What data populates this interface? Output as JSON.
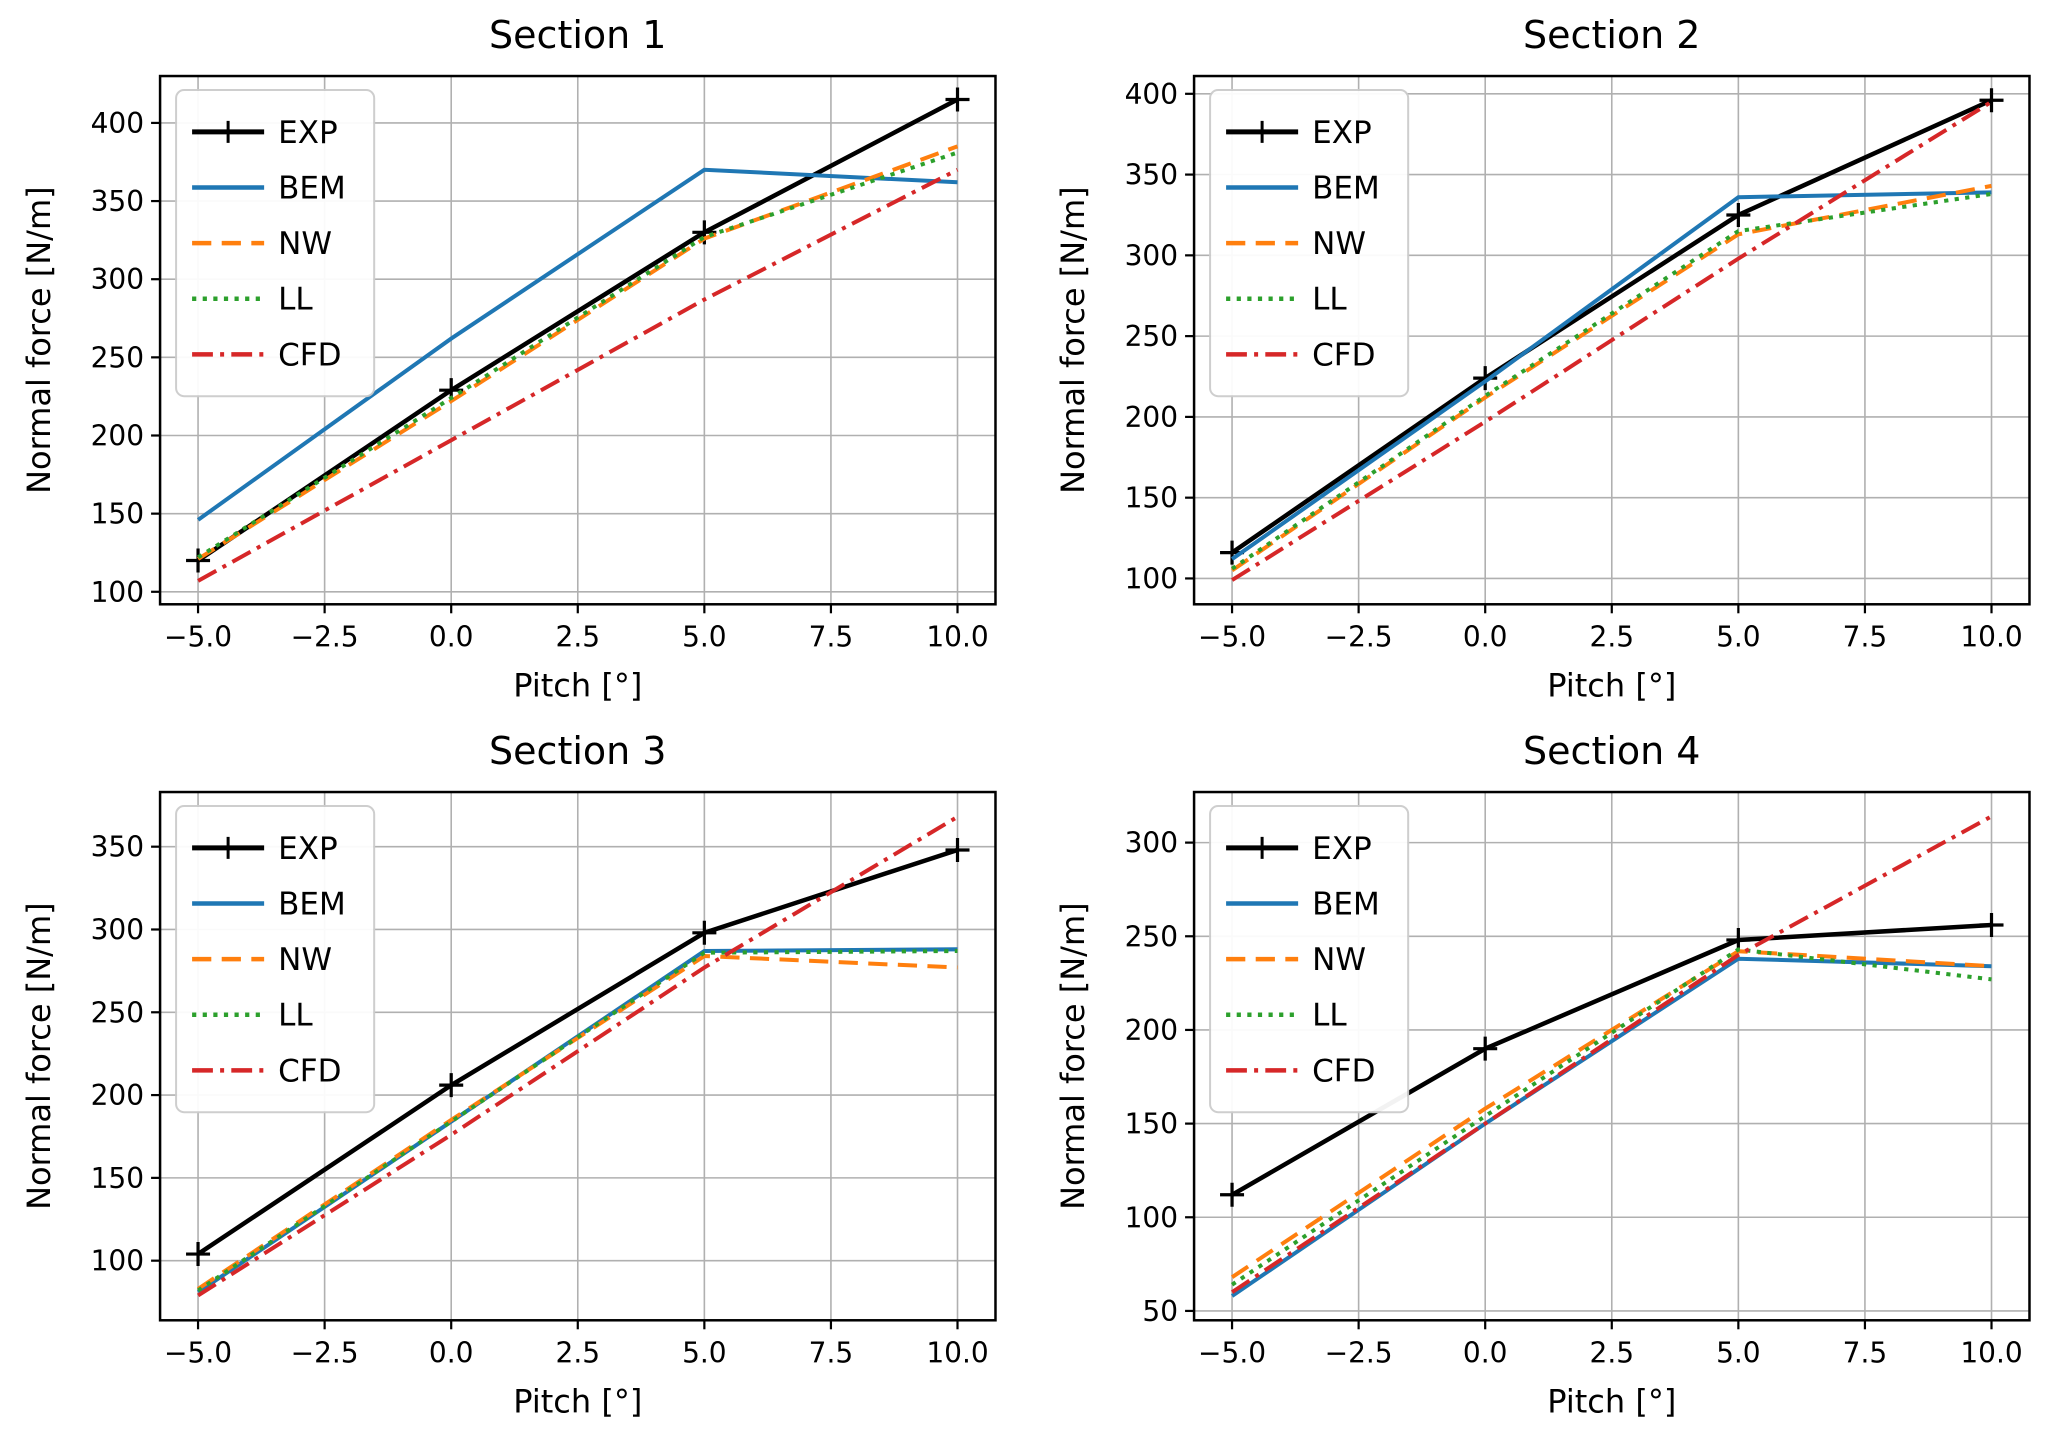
{
  "figure": {
    "background": "#ffffff",
    "layout": "2x2-grid"
  },
  "colors": {
    "background": "#ffffff",
    "grid": "#b0b0b0",
    "spine": "#000000",
    "legend_border": "#cccccc",
    "legend_background": "#ffffff"
  },
  "axes_common": {
    "xlabel": "Pitch [°]",
    "ylabel": "Normal force [N/m]",
    "xlim": [
      -5.75,
      10.75
    ],
    "xticks": [
      -5,
      -2.5,
      0,
      2.5,
      5,
      7.5,
      10
    ],
    "xtick_labels": [
      "−5.0",
      "−2.5",
      "0.0",
      "2.5",
      "5.0",
      "7.5",
      "10.0"
    ],
    "grid": true,
    "legend_position": "upper-left"
  },
  "series_styles": [
    {
      "name": "EXP",
      "color": "#000000",
      "linestyle": "solid",
      "marker": "plus",
      "linewidth": 4.5
    },
    {
      "name": "BEM",
      "color": "#1f77b4",
      "linestyle": "solid",
      "marker": null,
      "linewidth": 4
    },
    {
      "name": "NW",
      "color": "#ff7f0e",
      "linestyle": "dashed",
      "marker": null,
      "linewidth": 4
    },
    {
      "name": "LL",
      "color": "#2ca02c",
      "linestyle": "dotted",
      "marker": null,
      "linewidth": 4
    },
    {
      "name": "CFD",
      "color": "#d62728",
      "linestyle": "dashdot",
      "marker": null,
      "linewidth": 4
    }
  ],
  "legend_labels": [
    "EXP",
    "BEM",
    "NW",
    "LL",
    "CFD"
  ],
  "chart_data": [
    {
      "id": "section-1",
      "type": "line",
      "title": "Section 1",
      "xlabel": "Pitch [°]",
      "ylabel": "Normal force [N/m]",
      "x": [
        -5,
        0,
        5,
        10
      ],
      "ylim": [
        92,
        430
      ],
      "yticks": [
        100,
        150,
        200,
        250,
        300,
        350,
        400
      ],
      "series": [
        {
          "name": "EXP",
          "values": [
            120,
            229,
            330,
            415
          ]
        },
        {
          "name": "BEM",
          "values": [
            146,
            262,
            370,
            362
          ]
        },
        {
          "name": "NW",
          "values": [
            121,
            222,
            326,
            385
          ]
        },
        {
          "name": "LL",
          "values": [
            122,
            224,
            327,
            381
          ]
        },
        {
          "name": "CFD",
          "values": [
            107,
            197,
            287,
            370
          ]
        }
      ]
    },
    {
      "id": "section-2",
      "type": "line",
      "title": "Section 2",
      "xlabel": "Pitch [°]",
      "ylabel": "Normal force [N/m]",
      "x": [
        -5,
        0,
        5,
        10
      ],
      "ylim": [
        84,
        411
      ],
      "yticks": [
        100,
        150,
        200,
        250,
        300,
        350,
        400
      ],
      "series": [
        {
          "name": "EXP",
          "values": [
            116,
            224,
            325,
            396
          ]
        },
        {
          "name": "BEM",
          "values": [
            112,
            222,
            336,
            339
          ]
        },
        {
          "name": "NW",
          "values": [
            105,
            212,
            313,
            343
          ]
        },
        {
          "name": "LL",
          "values": [
            106,
            213,
            315,
            338
          ]
        },
        {
          "name": "CFD",
          "values": [
            99,
            197,
            298,
            395
          ]
        }
      ]
    },
    {
      "id": "section-3",
      "type": "line",
      "title": "Section 3",
      "xlabel": "Pitch [°]",
      "ylabel": "Normal force [N/m]",
      "x": [
        -5,
        0,
        5,
        10
      ],
      "ylim": [
        64,
        383
      ],
      "yticks": [
        100,
        150,
        200,
        250,
        300,
        350
      ],
      "series": [
        {
          "name": "EXP",
          "values": [
            104,
            206,
            298,
            348
          ]
        },
        {
          "name": "BEM",
          "values": [
            81,
            184,
            287,
            288
          ]
        },
        {
          "name": "NW",
          "values": [
            83,
            185,
            284,
            277
          ]
        },
        {
          "name": "LL",
          "values": [
            82,
            184,
            286,
            287
          ]
        },
        {
          "name": "CFD",
          "values": [
            79,
            176,
            277,
            368
          ]
        }
      ]
    },
    {
      "id": "section-4",
      "type": "line",
      "title": "Section 4",
      "xlabel": "Pitch [°]",
      "ylabel": "Normal force [N/m]",
      "x": [
        -5,
        0,
        5,
        10
      ],
      "ylim": [
        45,
        327
      ],
      "yticks": [
        50,
        100,
        150,
        200,
        250,
        300
      ],
      "series": [
        {
          "name": "EXP",
          "values": [
            112,
            190,
            248,
            256
          ]
        },
        {
          "name": "BEM",
          "values": [
            58,
            150,
            238,
            234
          ]
        },
        {
          "name": "NW",
          "values": [
            68,
            158,
            242,
            234
          ]
        },
        {
          "name": "LL",
          "values": [
            64,
            154,
            243,
            227
          ]
        },
        {
          "name": "CFD",
          "values": [
            60,
            150,
            240,
            314
          ]
        }
      ]
    }
  ]
}
